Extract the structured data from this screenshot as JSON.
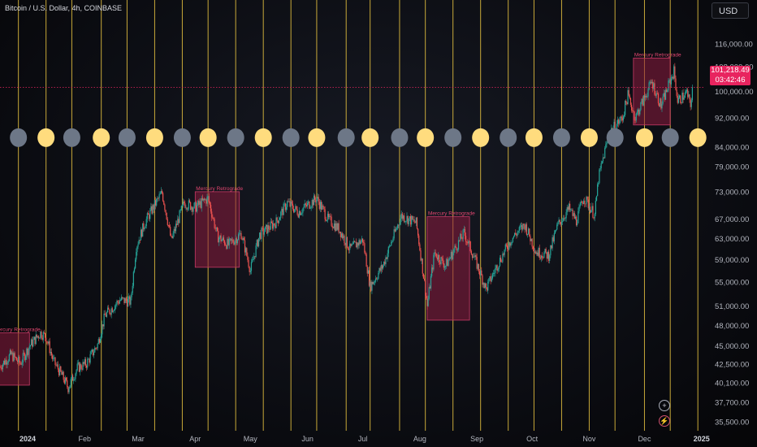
{
  "header": {
    "title": "Bitcoin / U.S. Dollar, 4h, COINBASE",
    "currency": "USD"
  },
  "price_tag": {
    "price": "101,218.49",
    "countdown": "03:42:46"
  },
  "icons": {
    "add": "plus-circle-icon",
    "alert": "lightning-circle-icon"
  },
  "colors": {
    "accent": "#e8245f",
    "vertical_lines": "#e9c440",
    "full_moon": "#ffdc7e",
    "new_moon": "#6d7787",
    "up": "#26a69a",
    "down": "#ef5350",
    "retrograde_fill": "#8c1c3e"
  },
  "chart_data": {
    "type": "candlestick",
    "title": "Bitcoin / U.S. Dollar, 4h, COINBASE",
    "x_ticks": [
      "2024",
      "Feb",
      "Mar",
      "Apr",
      "May",
      "Jun",
      "Jul",
      "Aug",
      "Sep",
      "Oct",
      "Nov",
      "Dec",
      "2025"
    ],
    "x_range": [
      "2023-12-17",
      "2025-01-02"
    ],
    "y_scale": "log",
    "y_ticks": [
      116000,
      108000,
      100000,
      92000,
      84000,
      79000,
      73000,
      67000,
      63000,
      59000,
      55000,
      51000,
      48000,
      45000,
      42500,
      40100,
      37700,
      35500
    ],
    "y_tick_labels": [
      "116,000.00",
      "108,000.00",
      "100,000.00",
      "92,000.00",
      "84,000.00",
      "79,000.00",
      "73,000.00",
      "67,000.00",
      "63,000.00",
      "59,000.00",
      "55,000.00",
      "51,000.00",
      "48,000.00",
      "45,000.00",
      "42,500.00",
      "40,100.00",
      "37,700.00",
      "35,500.00"
    ],
    "y_range": [
      34500,
      124000
    ],
    "last_price": 101218.49,
    "price_path": [
      [
        "2023-12-17",
        42200
      ],
      [
        "2023-12-23",
        43800
      ],
      [
        "2023-12-28",
        42600
      ],
      [
        "2024-01-02",
        45000
      ],
      [
        "2024-01-08",
        46900
      ],
      [
        "2024-01-11",
        46300
      ],
      [
        "2024-01-15",
        42900
      ],
      [
        "2024-01-19",
        41300
      ],
      [
        "2024-01-23",
        39500
      ],
      [
        "2024-01-28",
        42000
      ],
      [
        "2024-02-02",
        42600
      ],
      [
        "2024-02-08",
        45200
      ],
      [
        "2024-02-12",
        49500
      ],
      [
        "2024-02-20",
        52000
      ],
      [
        "2024-02-26",
        51700
      ],
      [
        "2024-02-29",
        61500
      ],
      [
        "2024-03-05",
        66500
      ],
      [
        "2024-03-14",
        72800
      ],
      [
        "2024-03-19",
        62600
      ],
      [
        "2024-03-26",
        70500
      ],
      [
        "2024-04-01",
        69500
      ],
      [
        "2024-04-08",
        71500
      ],
      [
        "2024-04-13",
        63500
      ],
      [
        "2024-04-19",
        61800
      ],
      [
        "2024-04-26",
        64000
      ],
      [
        "2024-05-01",
        57000
      ],
      [
        "2024-05-06",
        63800
      ],
      [
        "2024-05-15",
        66400
      ],
      [
        "2024-05-21",
        70500
      ],
      [
        "2024-05-27",
        68500
      ],
      [
        "2024-06-06",
        71500
      ],
      [
        "2024-06-12",
        67000
      ],
      [
        "2024-06-18",
        65000
      ],
      [
        "2024-06-24",
        61000
      ],
      [
        "2024-07-01",
        62800
      ],
      [
        "2024-07-05",
        54200
      ],
      [
        "2024-07-12",
        57900
      ],
      [
        "2024-07-22",
        67700
      ],
      [
        "2024-07-30",
        66200
      ],
      [
        "2024-08-05",
        51000
      ],
      [
        "2024-08-09",
        60300
      ],
      [
        "2024-08-15",
        57900
      ],
      [
        "2024-08-25",
        64100
      ],
      [
        "2024-09-06",
        53800
      ],
      [
        "2024-09-13",
        58600
      ],
      [
        "2024-09-20",
        63100
      ],
      [
        "2024-09-27",
        65800
      ],
      [
        "2024-10-03",
        60500
      ],
      [
        "2024-10-10",
        59800
      ],
      [
        "2024-10-15",
        65800
      ],
      [
        "2024-10-21",
        69200
      ],
      [
        "2024-10-25",
        66600
      ],
      [
        "2024-10-29",
        71800
      ],
      [
        "2024-11-04",
        67800
      ],
      [
        "2024-11-06",
        76000
      ],
      [
        "2024-11-12",
        88000
      ],
      [
        "2024-11-19",
        92000
      ],
      [
        "2024-11-22",
        98800
      ],
      [
        "2024-11-26",
        92000
      ],
      [
        "2024-12-05",
        103000
      ],
      [
        "2024-12-10",
        95500
      ],
      [
        "2024-12-17",
        106500
      ],
      [
        "2024-12-19",
        97000
      ],
      [
        "2024-12-24",
        99500
      ],
      [
        "2024-12-26",
        95500
      ],
      [
        "2024-12-27",
        101218
      ]
    ],
    "vertical_lines": [
      "2023-12-27",
      "2024-01-11",
      "2024-01-25",
      "2024-02-10",
      "2024-02-24",
      "2024-03-10",
      "2024-03-25",
      "2024-04-08",
      "2024-04-23",
      "2024-05-08",
      "2024-05-23",
      "2024-06-06",
      "2024-06-22",
      "2024-07-05",
      "2024-07-21",
      "2024-08-04",
      "2024-08-19",
      "2024-09-03",
      "2024-09-18",
      "2024-10-02",
      "2024-10-17",
      "2024-11-01",
      "2024-11-15",
      "2024-12-01",
      "2024-12-15",
      "2024-12-30"
    ],
    "moon_phases": [
      {
        "date": "2023-12-27",
        "phase": "new"
      },
      {
        "date": "2024-01-11",
        "phase": "full"
      },
      {
        "date": "2024-01-25",
        "phase": "new"
      },
      {
        "date": "2024-02-10",
        "phase": "full"
      },
      {
        "date": "2024-02-24",
        "phase": "new"
      },
      {
        "date": "2024-03-10",
        "phase": "full"
      },
      {
        "date": "2024-03-25",
        "phase": "new"
      },
      {
        "date": "2024-04-08",
        "phase": "full"
      },
      {
        "date": "2024-04-23",
        "phase": "new"
      },
      {
        "date": "2024-05-08",
        "phase": "full"
      },
      {
        "date": "2024-05-23",
        "phase": "new"
      },
      {
        "date": "2024-06-06",
        "phase": "full"
      },
      {
        "date": "2024-06-22",
        "phase": "new"
      },
      {
        "date": "2024-07-05",
        "phase": "full"
      },
      {
        "date": "2024-07-21",
        "phase": "new"
      },
      {
        "date": "2024-08-04",
        "phase": "full"
      },
      {
        "date": "2024-08-19",
        "phase": "new"
      },
      {
        "date": "2024-09-03",
        "phase": "full"
      },
      {
        "date": "2024-09-18",
        "phase": "new"
      },
      {
        "date": "2024-10-02",
        "phase": "full"
      },
      {
        "date": "2024-10-17",
        "phase": "new"
      },
      {
        "date": "2024-11-01",
        "phase": "full"
      },
      {
        "date": "2024-11-15",
        "phase": "new"
      },
      {
        "date": "2024-12-01",
        "phase": "full"
      },
      {
        "date": "2024-12-15",
        "phase": "new"
      },
      {
        "date": "2024-12-30",
        "phase": "full"
      }
    ],
    "moon_price_level": 86500,
    "annotations": [
      {
        "label": "Mercury Retrograde",
        "start": "2023-12-13",
        "end": "2024-01-02",
        "low": 39800,
        "high": 46900
      },
      {
        "label": "Mercury Retrograde",
        "start": "2024-04-01",
        "end": "2024-04-25",
        "low": 57600,
        "high": 73000
      },
      {
        "label": "Mercury Retrograde",
        "start": "2024-08-05",
        "end": "2024-08-28",
        "low": 48800,
        "high": 67500
      },
      {
        "label": "Mercury Retrograde",
        "start": "2024-11-25",
        "end": "2024-12-15",
        "low": 90000,
        "high": 111000
      }
    ]
  }
}
